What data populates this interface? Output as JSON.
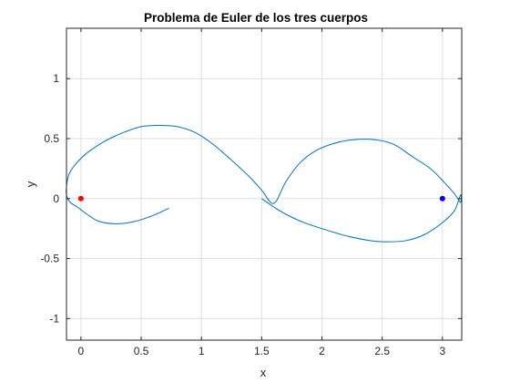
{
  "chart_data": {
    "type": "line",
    "title": "Problema de Euler de los tres cuerpos",
    "xlabel": "x",
    "ylabel": "y",
    "xlim": [
      -0.12,
      3.16
    ],
    "ylim": [
      -1.18,
      1.42
    ],
    "xticks": [
      0,
      0.5,
      1,
      1.5,
      2,
      2.5,
      3
    ],
    "xtick_labels": [
      "0",
      "0.5",
      "1",
      "1.5",
      "2",
      "2.5",
      "3"
    ],
    "yticks": [
      -1,
      -0.5,
      0,
      0.5,
      1
    ],
    "ytick_labels": [
      "-1",
      "-0.5",
      "0",
      "0.5",
      "1"
    ],
    "grid": true,
    "series": [
      {
        "color": "#0072bd",
        "x": [
          0.73,
          0.6,
          0.45,
          0.3,
          0.15,
          0.05,
          -0.03,
          -0.09,
          -0.12,
          -0.12,
          -0.1,
          -0.05,
          0.05,
          0.2,
          0.35,
          0.5,
          0.65,
          0.8,
          0.95,
          1.1,
          1.25,
          1.4,
          1.5,
          1.6,
          1.7,
          1.82,
          1.95,
          2.1,
          2.25,
          2.45,
          2.6,
          2.75,
          2.9,
          3.02,
          3.1,
          3.15,
          3.15,
          3.1,
          3.0,
          2.85,
          2.7,
          2.55,
          2.4,
          2.2,
          2.0,
          1.85,
          1.7,
          1.6,
          1.5
        ],
        "y": [
          -0.08,
          -0.14,
          -0.19,
          -0.21,
          -0.19,
          -0.13,
          -0.07,
          -0.03,
          0.03,
          0.1,
          0.2,
          0.28,
          0.38,
          0.48,
          0.55,
          0.6,
          0.61,
          0.6,
          0.55,
          0.45,
          0.32,
          0.18,
          0.07,
          -0.04,
          0.14,
          0.3,
          0.4,
          0.46,
          0.49,
          0.49,
          0.45,
          0.35,
          0.25,
          0.13,
          0.04,
          -0.03,
          0.03,
          -0.1,
          -0.2,
          -0.3,
          -0.35,
          -0.36,
          -0.35,
          -0.31,
          -0.25,
          -0.2,
          -0.13,
          -0.07,
          0.0
        ]
      }
    ],
    "points": [
      {
        "x": 0,
        "y": 0,
        "color": "#ff0000"
      },
      {
        "x": 3,
        "y": 0,
        "color": "#0000ff"
      }
    ]
  }
}
